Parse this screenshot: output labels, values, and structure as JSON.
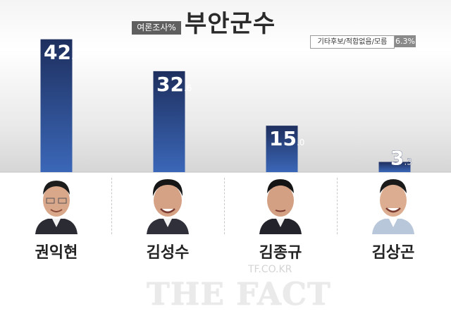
{
  "header": {
    "tag": "여론조사%",
    "title": "부안군수"
  },
  "other": {
    "label": "기타후보/적합없음/모름",
    "value": "6.3%"
  },
  "watermark": {
    "small": "TF.CO.KR",
    "big": "THE FACT"
  },
  "colors": {
    "bar_top": "#1e2f5e",
    "bar_bottom": "#3b67b8",
    "label": "#ffffff"
  },
  "chart_data": {
    "type": "bar",
    "categories": [
      "권익현",
      "김성수",
      "김종규",
      "김상곤"
    ],
    "values": [
      42.9,
      32.6,
      15.0,
      3.3
    ],
    "value_labels": [
      {
        "int": "42",
        "dec": ".9"
      },
      {
        "int": "32",
        "dec": ".6"
      },
      {
        "int": "15",
        "dec": ".0"
      },
      {
        "int": "3",
        "dec": ".3"
      }
    ],
    "ylim": [
      0,
      45
    ],
    "grid": false,
    "title": "부안군수",
    "xlabel": "",
    "ylabel": ""
  }
}
